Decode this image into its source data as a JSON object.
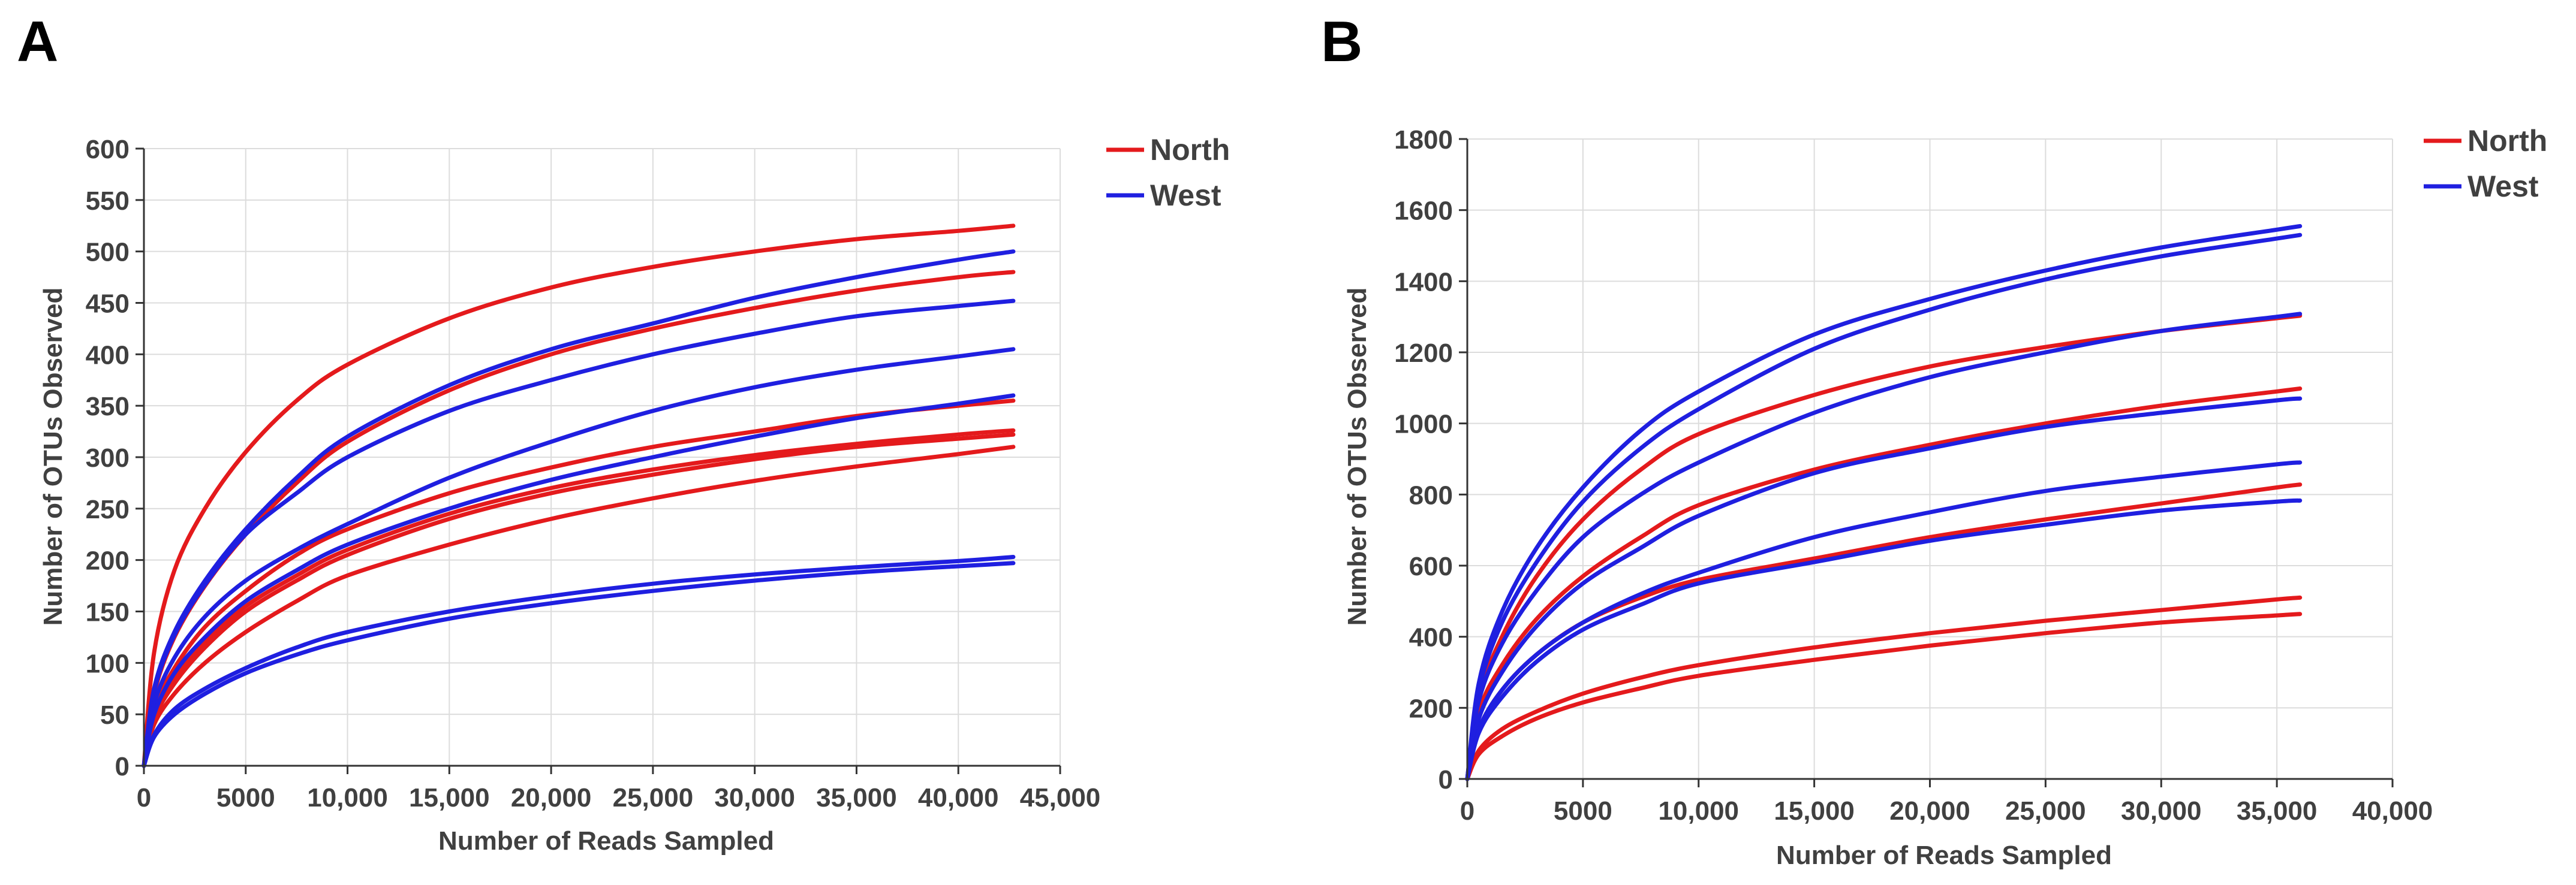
{
  "figure": {
    "panels": [
      {
        "id": "A",
        "panel_label": "A",
        "xlabel": "Number of Reads Sampled",
        "ylabel": "Number of OTUs Observed",
        "legend": [
          {
            "label": "North",
            "color": "#e41a1c"
          },
          {
            "label": "West",
            "color": "#1f1fe0"
          }
        ]
      },
      {
        "id": "B",
        "panel_label": "B",
        "xlabel": "Number of Reads Sampled",
        "ylabel": "Number of OTUs Observed",
        "legend": [
          {
            "label": "North",
            "color": "#e41a1c"
          },
          {
            "label": "West",
            "color": "#1f1fe0"
          }
        ]
      }
    ]
  },
  "chart_data": [
    {
      "panel": "A",
      "type": "line",
      "title": "",
      "xlabel": "Number of Reads Sampled",
      "ylabel": "Number of OTUs Observed",
      "xlim": [
        0,
        45000
      ],
      "ylim": [
        0,
        600
      ],
      "x_ticks": [
        0,
        5000,
        10000,
        15000,
        20000,
        25000,
        30000,
        35000,
        40000,
        45000
      ],
      "x_tick_labels": [
        "0",
        "5000",
        "10,000",
        "15,000",
        "20,000",
        "25,000",
        "30,000",
        "35,000",
        "40,000",
        "45,000"
      ],
      "y_ticks": [
        0,
        50,
        100,
        150,
        200,
        250,
        300,
        350,
        400,
        450,
        500,
        550,
        600
      ],
      "y_tick_labels": [
        "0",
        "50",
        "100",
        "150",
        "200",
        "250",
        "300",
        "350",
        "400",
        "450",
        "500",
        "550",
        "600"
      ],
      "grid": true,
      "legend_position": "top-right outside",
      "x": [
        0,
        500,
        1500,
        3000,
        5000,
        7500,
        10000,
        15000,
        20000,
        25000,
        30000,
        35000,
        40000,
        42700
      ],
      "series": [
        {
          "name": "North",
          "color": "#e41a1c",
          "values": [
            0,
            110,
            190,
            250,
            305,
            355,
            390,
            435,
            465,
            485,
            500,
            512,
            520,
            525
          ]
        },
        {
          "name": "North",
          "color": "#e41a1c",
          "values": [
            0,
            70,
            125,
            175,
            225,
            275,
            315,
            365,
            400,
            425,
            445,
            462,
            475,
            480
          ]
        },
        {
          "name": "North",
          "color": "#e41a1c",
          "values": [
            0,
            55,
            95,
            135,
            170,
            205,
            230,
            265,
            290,
            310,
            325,
            340,
            350,
            355
          ]
        },
        {
          "name": "North",
          "color": "#e41a1c",
          "values": [
            0,
            50,
            85,
            120,
            155,
            185,
            210,
            245,
            270,
            288,
            302,
            313,
            322,
            326
          ]
        },
        {
          "name": "North",
          "color": "#e41a1c",
          "values": [
            0,
            45,
            80,
            115,
            150,
            180,
            205,
            240,
            265,
            283,
            298,
            310,
            318,
            322
          ]
        },
        {
          "name": "North",
          "color": "#e41a1c",
          "values": [
            0,
            40,
            70,
            100,
            130,
            160,
            185,
            215,
            240,
            260,
            277,
            291,
            303,
            310
          ]
        },
        {
          "name": "West",
          "color": "#1f1fe0",
          "values": [
            0,
            75,
            130,
            180,
            230,
            280,
            320,
            370,
            405,
            430,
            455,
            475,
            492,
            500
          ]
        },
        {
          "name": "West",
          "color": "#1f1fe0",
          "values": [
            0,
            72,
            127,
            176,
            225,
            265,
            300,
            345,
            375,
            400,
            420,
            437,
            447,
            452
          ]
        },
        {
          "name": "West",
          "color": "#1f1fe0",
          "values": [
            0,
            60,
            105,
            145,
            180,
            210,
            235,
            280,
            315,
            345,
            368,
            385,
            398,
            405
          ]
        },
        {
          "name": "West",
          "color": "#1f1fe0",
          "values": [
            0,
            50,
            90,
            125,
            160,
            190,
            215,
            250,
            278,
            300,
            320,
            338,
            352,
            360
          ]
        },
        {
          "name": "West",
          "color": "#1f1fe0",
          "values": [
            0,
            30,
            55,
            75,
            95,
            115,
            130,
            150,
            165,
            177,
            186,
            193,
            199,
            203
          ]
        },
        {
          "name": "West",
          "color": "#1f1fe0",
          "values": [
            0,
            28,
            50,
            70,
            90,
            108,
            122,
            143,
            158,
            170,
            180,
            188,
            194,
            197
          ]
        }
      ]
    },
    {
      "panel": "B",
      "type": "line",
      "title": "",
      "xlabel": "Number of Reads Sampled",
      "ylabel": "Number of OTUs Observed",
      "xlim": [
        0,
        40000
      ],
      "ylim": [
        0,
        1800
      ],
      "x_ticks": [
        0,
        5000,
        10000,
        15000,
        20000,
        25000,
        30000,
        35000,
        40000
      ],
      "x_tick_labels": [
        "0",
        "5000",
        "10,000",
        "15,000",
        "20,000",
        "25,000",
        "30,000",
        "35,000",
        "40,000"
      ],
      "y_ticks": [
        0,
        200,
        400,
        600,
        800,
        1000,
        1200,
        1400,
        1600,
        1800
      ],
      "y_tick_labels": [
        "0",
        "200",
        "400",
        "600",
        "800",
        "1000",
        "1200",
        "1400",
        "1600",
        "1800"
      ],
      "grid": true,
      "legend_position": "top-right outside",
      "x": [
        0,
        500,
        1500,
        3000,
        5000,
        7500,
        10000,
        15000,
        20000,
        25000,
        30000,
        35000,
        36000
      ],
      "series": [
        {
          "name": "North",
          "color": "#e41a1c",
          "values": [
            0,
            230,
            400,
            570,
            730,
            870,
            970,
            1080,
            1160,
            1215,
            1260,
            1296,
            1303
          ]
        },
        {
          "name": "North",
          "color": "#e41a1c",
          "values": [
            0,
            190,
            320,
            450,
            570,
            680,
            770,
            870,
            940,
            1000,
            1050,
            1090,
            1098
          ]
        },
        {
          "name": "North",
          "color": "#e41a1c",
          "values": [
            0,
            140,
            250,
            350,
            440,
            510,
            560,
            620,
            680,
            730,
            775,
            820,
            828
          ]
        },
        {
          "name": "North",
          "color": "#e41a1c",
          "values": [
            0,
            80,
            140,
            190,
            240,
            285,
            320,
            370,
            410,
            445,
            475,
            505,
            510
          ]
        },
        {
          "name": "North",
          "color": "#e41a1c",
          "values": [
            0,
            70,
            120,
            170,
            215,
            255,
            290,
            335,
            375,
            410,
            440,
            460,
            464
          ]
        },
        {
          "name": "West",
          "color": "#1f1fe0",
          "values": [
            0,
            270,
            470,
            650,
            820,
            980,
            1090,
            1250,
            1350,
            1430,
            1495,
            1545,
            1555
          ]
        },
        {
          "name": "West",
          "color": "#1f1fe0",
          "values": [
            0,
            250,
            440,
            610,
            780,
            930,
            1040,
            1210,
            1320,
            1405,
            1470,
            1520,
            1530
          ]
        },
        {
          "name": "West",
          "color": "#1f1fe0",
          "values": [
            0,
            220,
            380,
            530,
            680,
            800,
            890,
            1030,
            1130,
            1200,
            1260,
            1300,
            1308
          ]
        },
        {
          "name": "West",
          "color": "#1f1fe0",
          "values": [
            0,
            170,
            300,
            430,
            550,
            650,
            740,
            860,
            930,
            990,
            1030,
            1065,
            1070
          ]
        },
        {
          "name": "West",
          "color": "#1f1fe0",
          "values": [
            0,
            140,
            250,
            350,
            440,
            520,
            580,
            680,
            750,
            810,
            850,
            885,
            890
          ]
        },
        {
          "name": "West",
          "color": "#1f1fe0",
          "values": [
            0,
            130,
            230,
            330,
            420,
            490,
            550,
            610,
            670,
            715,
            755,
            780,
            783
          ]
        }
      ]
    }
  ]
}
